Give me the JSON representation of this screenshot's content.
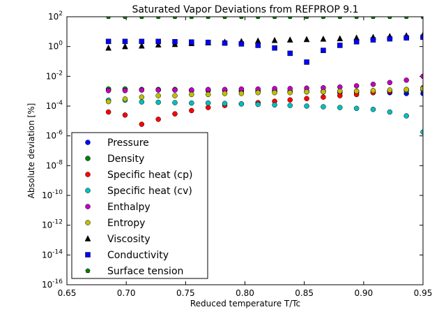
{
  "chart_data": {
    "type": "scatter",
    "title": "Saturated Vapor Deviations from REFPROP 9.1",
    "xlabel": "Reduced temperature T/Tc",
    "ylabel": "Absolute deviation [%]",
    "xlim": [
      0.65,
      0.95
    ],
    "ylim_exponent": [
      -16,
      2
    ],
    "yscale": "log",
    "x_ticks": [
      "0.65",
      "0.70",
      "0.75",
      "0.80",
      "0.85",
      "0.90",
      "0.95"
    ],
    "y_ticks": [
      {
        "base": "10",
        "exp": "2"
      },
      {
        "base": "10",
        "exp": "0"
      },
      {
        "base": "10",
        "exp": "-2"
      },
      {
        "base": "10",
        "exp": "-4"
      },
      {
        "base": "10",
        "exp": "-6"
      },
      {
        "base": "10",
        "exp": "-8"
      },
      {
        "base": "10",
        "exp": "-10"
      },
      {
        "base": "10",
        "exp": "-12"
      },
      {
        "base": "10",
        "exp": "-14"
      },
      {
        "base": "10",
        "exp": "-16"
      }
    ],
    "legend_position": "lower-left",
    "x": [
      0.685,
      0.699,
      0.713,
      0.727,
      0.741,
      0.755,
      0.769,
      0.783,
      0.797,
      0.811,
      0.825,
      0.838,
      0.852,
      0.866,
      0.88,
      0.894,
      0.908,
      0.922,
      0.936,
      0.95
    ],
    "series": [
      {
        "name": "Pressure",
        "marker": "circle",
        "color": "#0000ff",
        "values": [
          0.0013,
          0.0013,
          0.0012,
          0.0012,
          0.0012,
          0.0011,
          0.0011,
          0.0011,
          0.001,
          0.001,
          0.001,
          0.0009,
          0.0009,
          0.0009,
          0.0008,
          0.0008,
          0.0008,
          0.0008,
          0.0007,
          0.0007
        ]
      },
      {
        "name": "Density",
        "marker": "circle",
        "color": "#008000",
        "values": [
          0.0014,
          0.0014,
          0.0013,
          0.0013,
          0.0013,
          0.0012,
          0.0012,
          0.0012,
          0.0011,
          0.0011,
          0.0011,
          0.001,
          0.001,
          0.001,
          0.001,
          0.001,
          0.001,
          0.0011,
          0.0011,
          0.0012
        ]
      },
      {
        "name": "Specific heat (cp)",
        "marker": "circle",
        "color": "#ff0000",
        "values": [
          4e-05,
          2.5e-05,
          6e-06,
          1.3e-05,
          3e-05,
          5e-05,
          8e-05,
          0.00011,
          0.00014,
          0.00017,
          0.00021,
          0.00026,
          0.00032,
          0.0004,
          0.0005,
          0.0006,
          0.0008,
          0.001,
          0.0013,
          0.0017
        ]
      },
      {
        "name": "Specific heat (cv)",
        "marker": "circle",
        "color": "#00bfbf",
        "values": [
          0.00025,
          0.00025,
          0.00019,
          0.00018,
          0.00017,
          0.00016,
          0.00016,
          0.00015,
          0.00014,
          0.00013,
          0.00012,
          0.00011,
          0.0001,
          9e-05,
          8e-05,
          7e-05,
          6e-05,
          4e-05,
          2.2e-05,
          1.8e-06
        ]
      },
      {
        "name": "Enthalpy",
        "marker": "circle",
        "color": "#bf00bf",
        "values": [
          0.0011,
          0.0011,
          0.0012,
          0.0012,
          0.0012,
          0.0012,
          0.0013,
          0.0013,
          0.0014,
          0.0014,
          0.0015,
          0.0015,
          0.0016,
          0.0017,
          0.0019,
          0.0023,
          0.0029,
          0.0038,
          0.0055,
          0.01
        ]
      },
      {
        "name": "Entropy",
        "marker": "circle",
        "color": "#bfbf00",
        "values": [
          0.0002,
          0.0003,
          0.0004,
          0.0005,
          0.0005,
          0.0006,
          0.0006,
          0.0007,
          0.0007,
          0.0008,
          0.0008,
          0.0008,
          0.0009,
          0.0009,
          0.001,
          0.001,
          0.0011,
          0.0012,
          0.0013,
          0.0015
        ]
      },
      {
        "name": "Viscosity",
        "marker": "triangle",
        "color": "#000000",
        "values": [
          0.8,
          1.0,
          1.1,
          1.3,
          1.4,
          1.6,
          1.8,
          2.0,
          2.2,
          2.4,
          2.6,
          2.8,
          3.0,
          3.2,
          3.4,
          3.8,
          4.2,
          4.8,
          5.4,
          6.0
        ]
      },
      {
        "name": "Conductivity",
        "marker": "square",
        "color": "#0000ff",
        "values": [
          2.2,
          2.2,
          2.2,
          2.2,
          2.1,
          2.0,
          1.9,
          1.7,
          1.5,
          1.2,
          0.8,
          0.35,
          0.09,
          0.55,
          1.2,
          2.1,
          2.8,
          3.3,
          3.8,
          4.2
        ]
      },
      {
        "name": "Surface tension",
        "marker": "pentagon",
        "color": "#008000",
        "values": [
          100,
          100,
          100,
          100,
          100,
          100,
          100,
          100,
          100,
          100,
          100,
          100,
          100,
          100,
          100,
          100,
          100,
          100,
          100,
          100
        ]
      }
    ]
  }
}
